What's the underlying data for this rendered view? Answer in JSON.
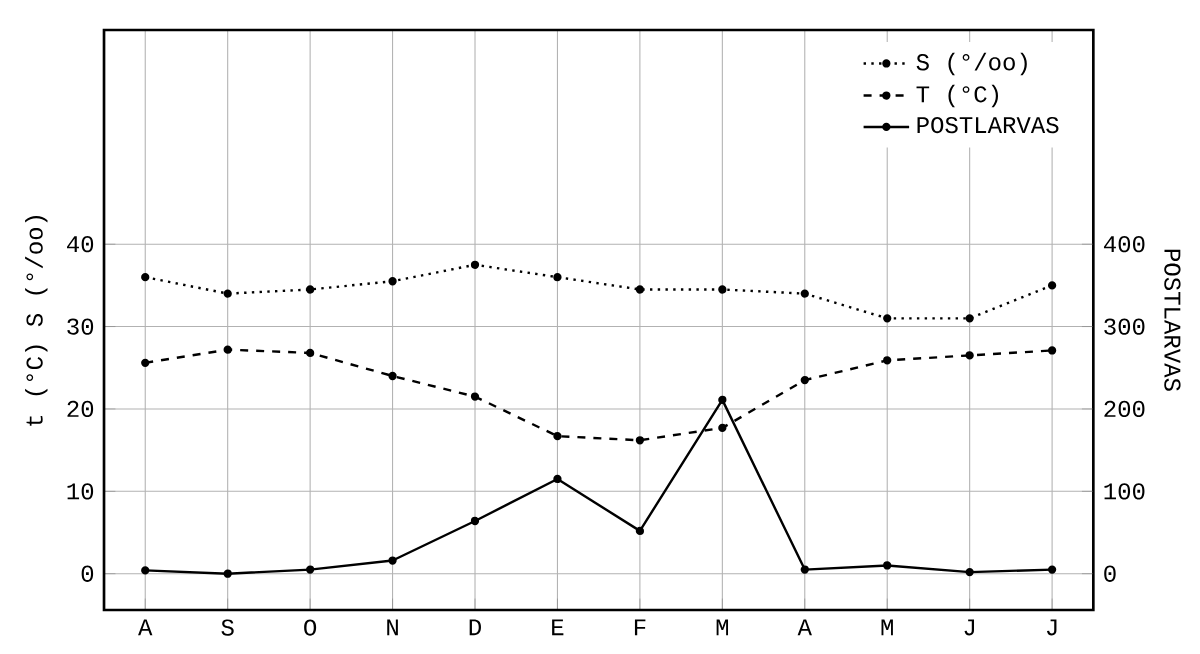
{
  "chart_data": {
    "type": "line",
    "categories": [
      "A",
      "S",
      "O",
      "N",
      "D",
      "E",
      "F",
      "M",
      "A",
      "M",
      "J",
      "J"
    ],
    "ylabel": "t (°C) S (°/oo)",
    "y2label": "POSTLARVAS",
    "ylim": [
      -4.4,
      66
    ],
    "yticks": [
      0,
      10,
      20,
      30,
      40
    ],
    "y2lim": [
      -44,
      660
    ],
    "y2ticks": [
      0,
      100,
      200,
      300,
      400
    ],
    "grid": true,
    "legend": "top right",
    "marker": "circle",
    "series": [
      {
        "name": "S (°/oo)",
        "color": "#000000",
        "line_style": "dotted",
        "values": [
          36,
          34,
          34.5,
          35.5,
          37.5,
          36,
          34.5,
          34.5,
          34,
          31,
          31,
          35
        ]
      },
      {
        "name": "T (°C)",
        "color": "#000000",
        "line_style": "dashed",
        "values": [
          25.6,
          27.2,
          26.8,
          24,
          21.5,
          16.7,
          16.2,
          17.7,
          23.5,
          25.9,
          26.5,
          27.1
        ]
      },
      {
        "name": "POSTLARVAS",
        "color": "#000000",
        "line_style": "solid",
        "axis": "y2",
        "values": [
          4,
          0,
          5,
          16,
          64,
          115,
          52,
          211,
          5,
          10,
          2,
          5
        ]
      }
    ]
  }
}
